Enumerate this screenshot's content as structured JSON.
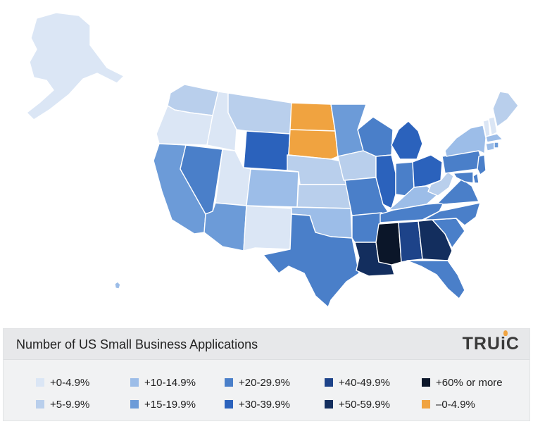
{
  "legend": {
    "title": "Number of US Small Business Applications",
    "brand": "TRUiC",
    "items": [
      {
        "label": "+0-4.9%",
        "color": "#dbe6f5"
      },
      {
        "label": "+5-9.9%",
        "color": "#b9cfec"
      },
      {
        "label": "+10-14.9%",
        "color": "#9cbde8"
      },
      {
        "label": "+15-19.9%",
        "color": "#6c9bd8"
      },
      {
        "label": "+20-29.9%",
        "color": "#4a7fc9"
      },
      {
        "label": "+30-39.9%",
        "color": "#2b62bc"
      },
      {
        "label": "+40-49.9%",
        "color": "#1d4389"
      },
      {
        "label": "+50-59.9%",
        "color": "#132e5e"
      },
      {
        "label": "+60% or more",
        "color": "#0b1629"
      },
      {
        "label": "–0-4.9%",
        "color": "#f0a340"
      }
    ]
  },
  "states": [
    {
      "name": "AK",
      "category": "+0-4.9%"
    },
    {
      "name": "HI",
      "category": "+10-14.9%"
    },
    {
      "name": "WA",
      "category": "+5-9.9%"
    },
    {
      "name": "OR",
      "category": "+0-4.9%"
    },
    {
      "name": "CA",
      "category": "+15-19.9%"
    },
    {
      "name": "ID",
      "category": "+0-4.9%"
    },
    {
      "name": "NV",
      "category": "+20-29.9%"
    },
    {
      "name": "MT",
      "category": "+5-9.9%"
    },
    {
      "name": "WY",
      "category": "+30-39.9%"
    },
    {
      "name": "UT",
      "category": "+0-4.9%"
    },
    {
      "name": "AZ",
      "category": "+15-19.9%"
    },
    {
      "name": "CO",
      "category": "+10-14.9%"
    },
    {
      "name": "NM",
      "category": "+0-4.9%"
    },
    {
      "name": "ND",
      "category": "–0-4.9%"
    },
    {
      "name": "SD",
      "category": "–0-4.9%"
    },
    {
      "name": "NE",
      "category": "+5-9.9%"
    },
    {
      "name": "KS",
      "category": "+5-9.9%"
    },
    {
      "name": "OK",
      "category": "+10-14.9%"
    },
    {
      "name": "TX",
      "category": "+20-29.9%"
    },
    {
      "name": "MN",
      "category": "+15-19.9%"
    },
    {
      "name": "IA",
      "category": "+5-9.9%"
    },
    {
      "name": "MO",
      "category": "+20-29.9%"
    },
    {
      "name": "AR",
      "category": "+20-29.9%"
    },
    {
      "name": "LA",
      "category": "+50-59.9%"
    },
    {
      "name": "WI",
      "category": "+20-29.9%"
    },
    {
      "name": "IL",
      "category": "+30-39.9%"
    },
    {
      "name": "MI",
      "category": "+30-39.9%"
    },
    {
      "name": "IN",
      "category": "+20-29.9%"
    },
    {
      "name": "OH",
      "category": "+30-39.9%"
    },
    {
      "name": "KY",
      "category": "+10-14.9%"
    },
    {
      "name": "TN",
      "category": "+20-29.9%"
    },
    {
      "name": "MS",
      "category": "+60% or more"
    },
    {
      "name": "AL",
      "category": "+40-49.9%"
    },
    {
      "name": "GA",
      "category": "+50-59.9%"
    },
    {
      "name": "FL",
      "category": "+20-29.9%"
    },
    {
      "name": "SC",
      "category": "+20-29.9%"
    },
    {
      "name": "NC",
      "category": "+20-29.9%"
    },
    {
      "name": "VA",
      "category": "+20-29.9%"
    },
    {
      "name": "WV",
      "category": "+5-9.9%"
    },
    {
      "name": "PA",
      "category": "+20-29.9%"
    },
    {
      "name": "NY",
      "category": "+10-14.9%"
    },
    {
      "name": "VT",
      "category": "+0-4.9%"
    },
    {
      "name": "NH",
      "category": "+0-4.9%"
    },
    {
      "name": "ME",
      "category": "+5-9.9%"
    },
    {
      "name": "MA",
      "category": "+10-14.9%"
    },
    {
      "name": "CT",
      "category": "+10-14.9%"
    },
    {
      "name": "RI",
      "category": "+15-19.9%"
    },
    {
      "name": "NJ",
      "category": "+20-29.9%"
    },
    {
      "name": "DE",
      "category": "+20-29.9%"
    },
    {
      "name": "MD",
      "category": "+20-29.9%"
    }
  ]
}
